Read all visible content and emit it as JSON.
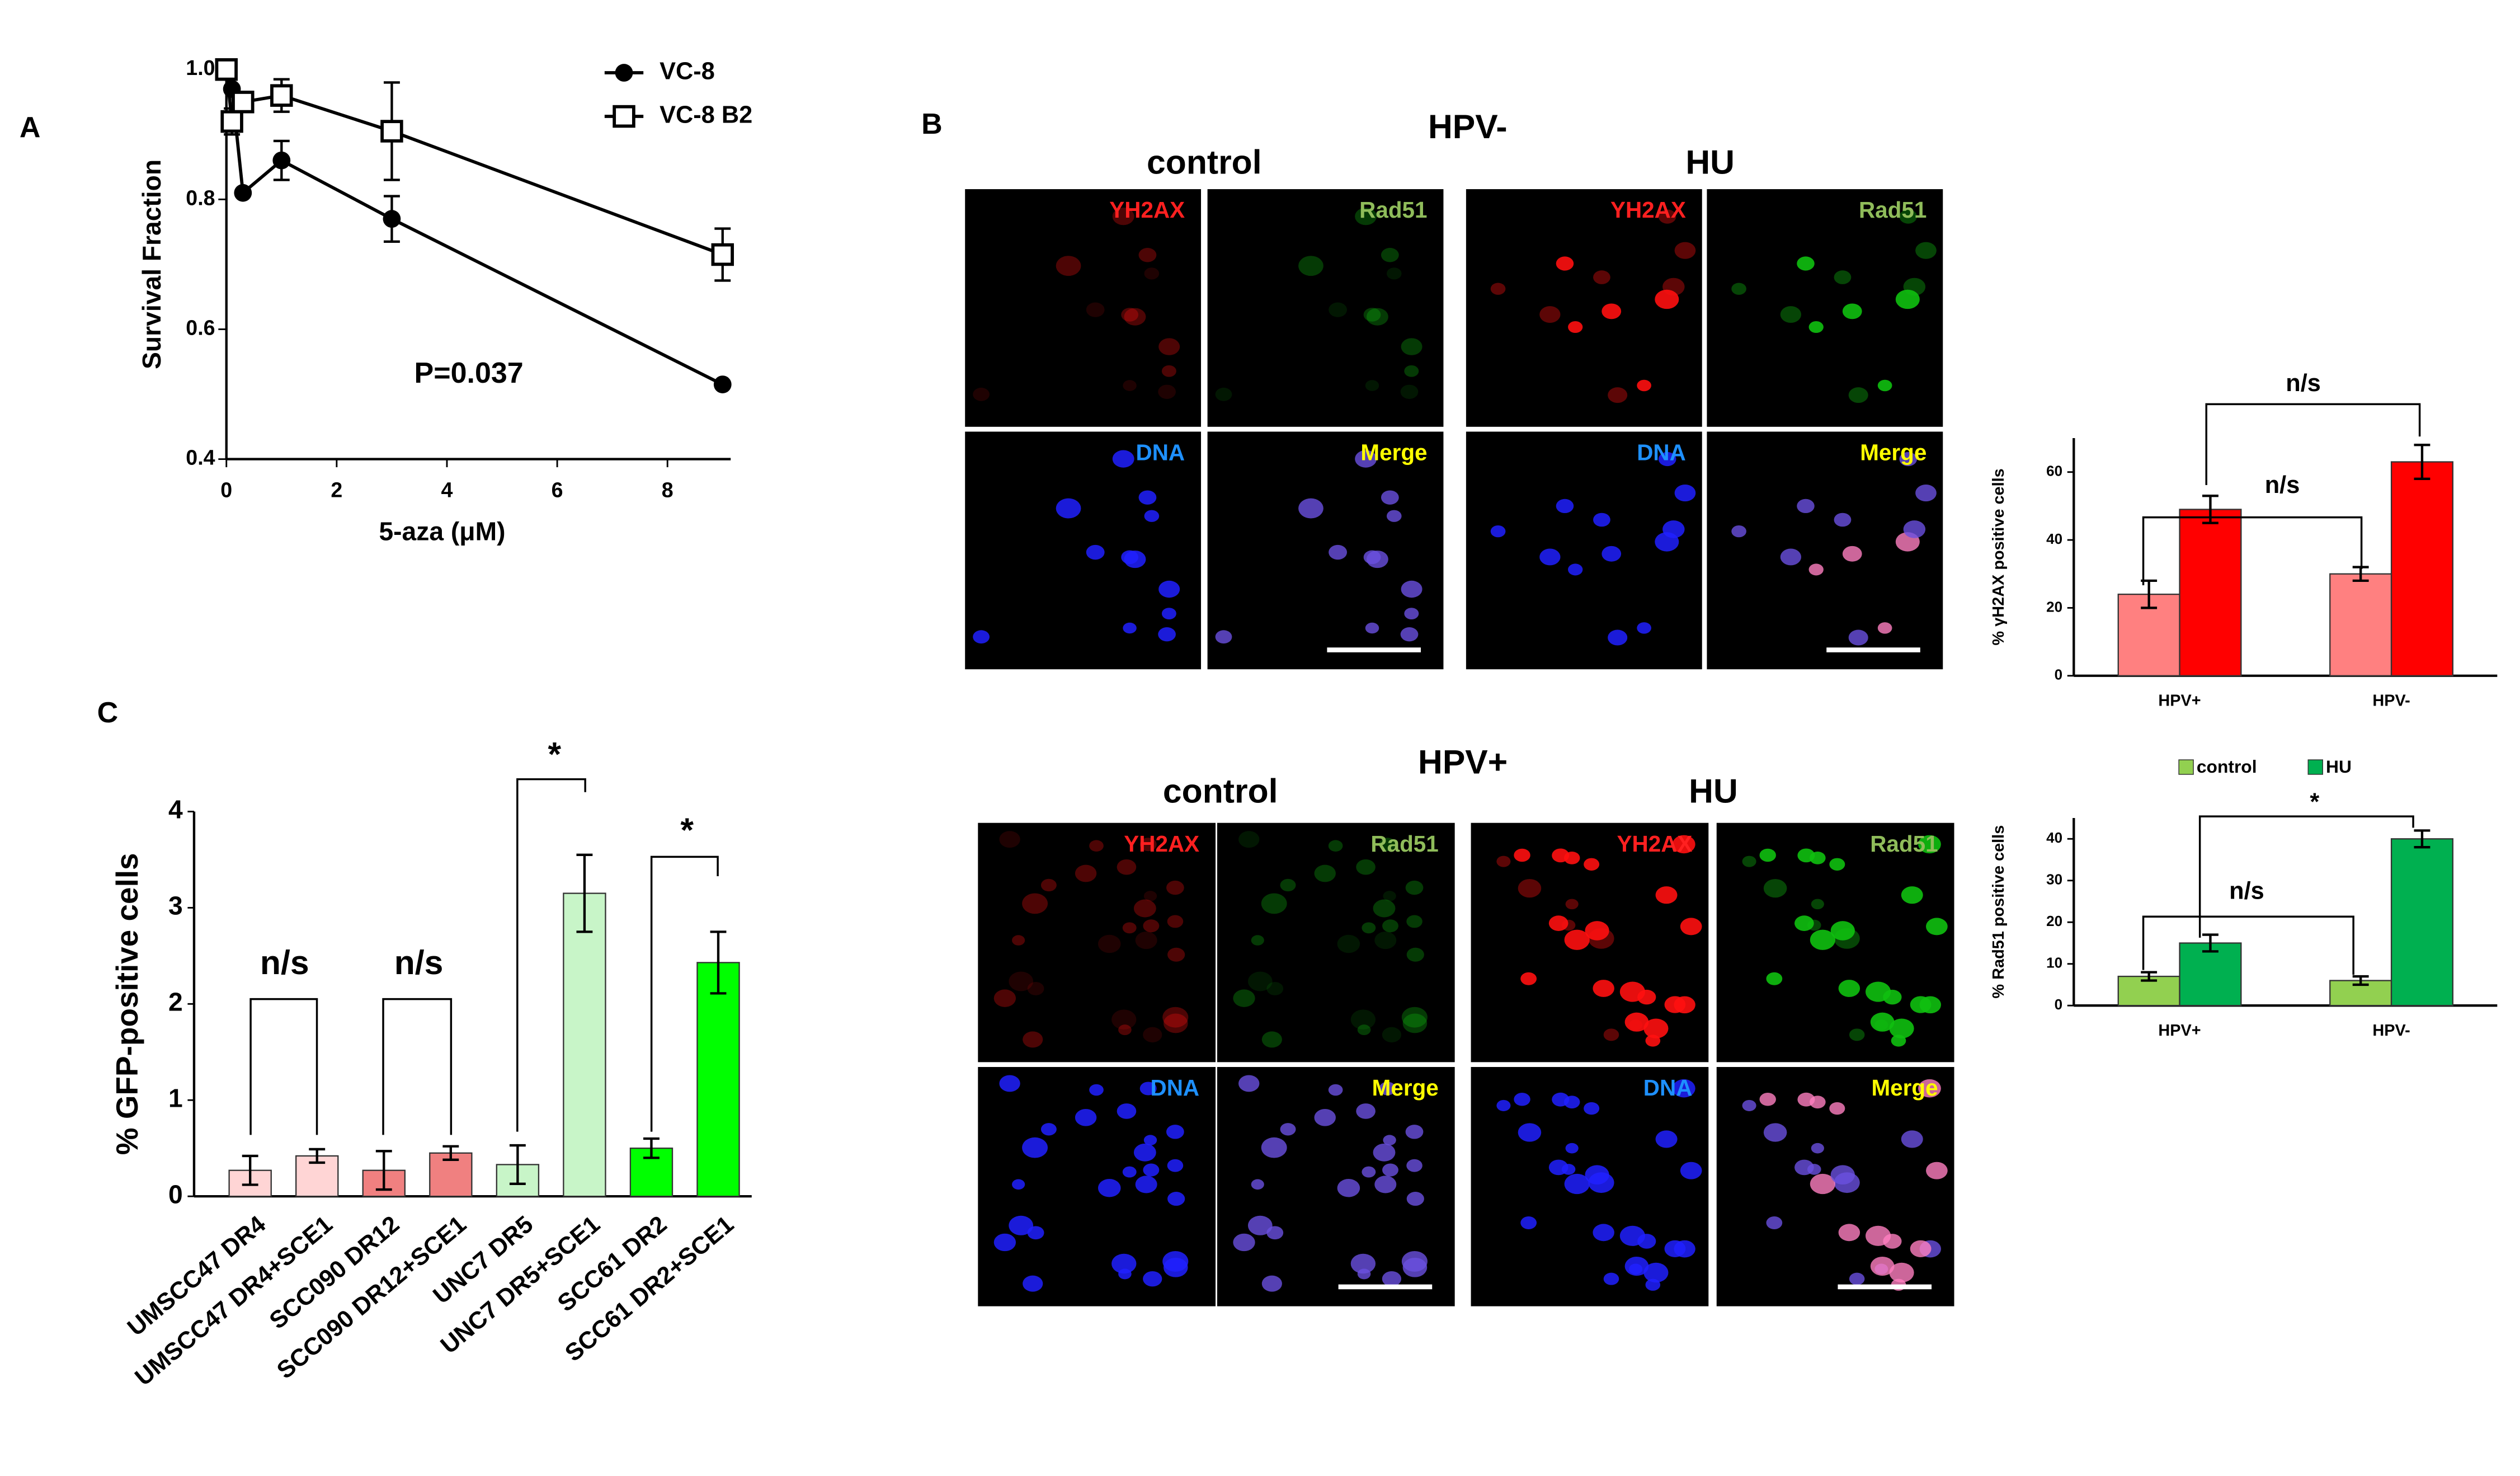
{
  "panel_labels": [
    "A",
    "B",
    "C"
  ],
  "micrographs": [
    {
      "title": "HPV-",
      "conditions": [
        "control",
        "HU"
      ]
    },
    {
      "title": "HPV+",
      "conditions": [
        "control",
        "HU"
      ]
    }
  ],
  "channels": [
    "YH2AX",
    "Rad51",
    "DNA",
    "Merge"
  ],
  "chart_data": [
    {
      "type": "line",
      "y_label": "Survival Fraction",
      "x_label": "5-aza (μM)",
      "annotations": [
        "P=0.037"
      ],
      "x": [
        0,
        0.1,
        0.3,
        1,
        3,
        9
      ],
      "series": [
        {
          "name": "VC-8",
          "color": "#000000",
          "marker": "circle",
          "values": [
            1.0,
            0.97,
            0.81,
            0.86,
            0.77,
            0.515
          ],
          "errors": [
            0,
            0,
            0,
            0.03,
            0.035,
            0
          ]
        },
        {
          "name": "VC-8 B2",
          "color": "#000000",
          "marker": "square",
          "values": [
            1.0,
            0.92,
            0.95,
            0.96,
            0.905,
            0.715
          ],
          "errors": [
            0,
            0.02,
            0,
            0.025,
            0.075,
            0.04
          ]
        }
      ],
      "xlim": [
        0,
        9
      ],
      "xticks": [
        0,
        2,
        4,
        6,
        8
      ],
      "ylim": [
        0.4,
        1.0
      ],
      "yticks": [
        0.4,
        0.6,
        0.8,
        {
          "value": 1.0,
          "label": "1.0"
        }
      ],
      "legend": "top-right"
    },
    {
      "type": "bar",
      "y_label": "% γH2AX positive cells",
      "categories": [
        "HPV+",
        "HPV-"
      ],
      "series": [
        {
          "color": "#ff8080",
          "values": [
            24,
            30
          ],
          "errors": [
            4,
            2
          ]
        },
        {
          "color": "#ff0000",
          "values": [
            49,
            63
          ],
          "errors": [
            4,
            5
          ]
        }
      ],
      "ylim": [
        0,
        70
      ],
      "yticks": [
        0,
        20,
        40,
        60
      ],
      "annotations": [
        "n/s",
        "n/s"
      ]
    },
    {
      "type": "bar",
      "y_label": "% Rad51  positive cells",
      "categories": [
        "HPV+",
        "HPV-"
      ],
      "series": [
        {
          "name": "control",
          "color": "#92d050",
          "values": [
            7,
            6
          ],
          "errors": [
            1,
            1
          ]
        },
        {
          "name": "HU",
          "color": "#00b050",
          "values": [
            15,
            40
          ],
          "errors": [
            2,
            2
          ]
        }
      ],
      "ylim": [
        0,
        45
      ],
      "yticks": [
        0,
        10,
        20,
        30,
        40
      ],
      "legend": "top",
      "annotations": [
        "*",
        "n/s"
      ]
    },
    {
      "type": "bar",
      "y_label": "% GFP-positive cells",
      "categories": [
        "UMSCC47 DR4",
        "UMSCC47 DR4+SCE1",
        "SCC090 DR12",
        "SCC090 DR12+SCE1",
        "UNC7 DR5",
        "UNC7 DR5+SCE1",
        "SCC61 DR2",
        "SCC61 DR2+SCE1"
      ],
      "values": [
        0.27,
        0.42,
        0.27,
        0.45,
        0.33,
        3.15,
        0.5,
        2.43
      ],
      "errors": [
        0.15,
        0.07,
        0.2,
        0.07,
        0.2,
        0.4,
        0.1,
        0.32
      ],
      "colors": [
        "#ffd5d5",
        "#ffd5d5",
        "#f08080",
        "#f08080",
        "#c8f5c8",
        "#c8f5c8",
        "#00ff00",
        "#00ff00"
      ],
      "ylim": [
        0,
        4
      ],
      "yticks": [
        0,
        1,
        2,
        3,
        4
      ],
      "annotations": [
        "n/s",
        "n/s",
        "*",
        "*"
      ]
    }
  ]
}
